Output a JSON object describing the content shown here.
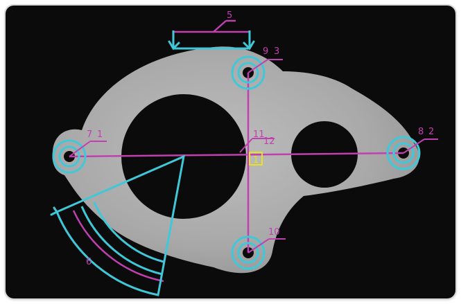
{
  "viewer": {
    "title": "",
    "colors": {
      "background": "#0b0b0b",
      "part": "#b5b5b5",
      "measure_magenta": "#c040b0",
      "measure_cyan": "#40c8d8",
      "origin_yellow": "#e8e020"
    }
  },
  "annotations": {
    "dim_5": "5",
    "hole_top_a": "9",
    "hole_top_b": "3",
    "hole_left_a": "7",
    "hole_left_b": "1",
    "hole_right_a": "8",
    "hole_right_b": "2",
    "center_a": "11",
    "center_b": "12",
    "origin": "1",
    "hole_bottom": "10",
    "arc_6": "6"
  }
}
